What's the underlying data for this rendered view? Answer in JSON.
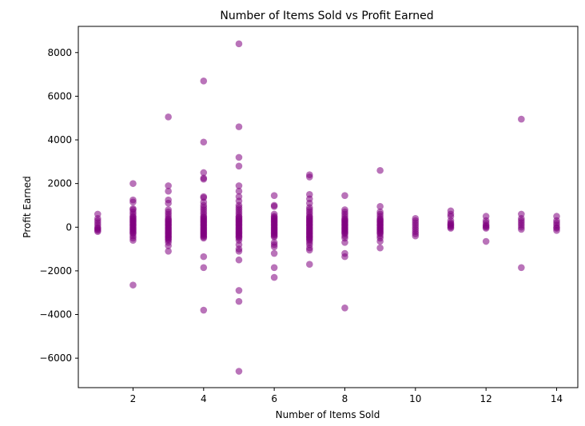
{
  "chart_data": {
    "type": "scatter",
    "title": "Number of Items Sold vs Profit Earned",
    "xlabel": "Number of Items Sold",
    "ylabel": "Profit Earned",
    "xlim": [
      0.45,
      14.6
    ],
    "ylim": [
      -7350,
      9200
    ],
    "xticks": [
      2,
      4,
      6,
      8,
      10,
      12,
      14
    ],
    "yticks": [
      -6000,
      -4000,
      -2000,
      0,
      2000,
      4000,
      6000,
      8000
    ],
    "ytick_labels": [
      "−6000",
      "−4000",
      "−2000",
      "0",
      "2000",
      "4000",
      "6000",
      "8000"
    ],
    "marker_color": "#800080",
    "marker_alpha": 0.55,
    "grid": false,
    "series": [
      {
        "points": [
          [
            1,
            600
          ],
          [
            1,
            400
          ],
          [
            1,
            300
          ],
          [
            1,
            200
          ],
          [
            1,
            100
          ],
          [
            1,
            0
          ],
          [
            1,
            -50
          ],
          [
            1,
            -100
          ],
          [
            1,
            -150
          ],
          [
            1,
            -200
          ],
          [
            2,
            2000
          ],
          [
            2,
            1250
          ],
          [
            2,
            1150
          ],
          [
            2,
            850
          ],
          [
            2,
            800
          ],
          [
            2,
            700
          ],
          [
            2,
            600
          ],
          [
            2,
            500
          ],
          [
            2,
            450
          ],
          [
            2,
            400
          ],
          [
            2,
            350
          ],
          [
            2,
            300
          ],
          [
            2,
            250
          ],
          [
            2,
            200
          ],
          [
            2,
            150
          ],
          [
            2,
            100
          ],
          [
            2,
            50
          ],
          [
            2,
            0
          ],
          [
            2,
            -50
          ],
          [
            2,
            -100
          ],
          [
            2,
            -150
          ],
          [
            2,
            -200
          ],
          [
            2,
            -250
          ],
          [
            2,
            -300
          ],
          [
            2,
            -400
          ],
          [
            2,
            -500
          ],
          [
            2,
            -600
          ],
          [
            2,
            -2650
          ],
          [
            3,
            5050
          ],
          [
            3,
            1900
          ],
          [
            3,
            1650
          ],
          [
            3,
            1250
          ],
          [
            3,
            1100
          ],
          [
            3,
            800
          ],
          [
            3,
            700
          ],
          [
            3,
            600
          ],
          [
            3,
            500
          ],
          [
            3,
            400
          ],
          [
            3,
            350
          ],
          [
            3,
            300
          ],
          [
            3,
            250
          ],
          [
            3,
            200
          ],
          [
            3,
            150
          ],
          [
            3,
            100
          ],
          [
            3,
            50
          ],
          [
            3,
            0
          ],
          [
            3,
            -50
          ],
          [
            3,
            -100
          ],
          [
            3,
            -150
          ],
          [
            3,
            -200
          ],
          [
            3,
            -250
          ],
          [
            3,
            -300
          ],
          [
            3,
            -350
          ],
          [
            3,
            -400
          ],
          [
            3,
            -450
          ],
          [
            3,
            -500
          ],
          [
            3,
            -550
          ],
          [
            3,
            -600
          ],
          [
            3,
            -700
          ],
          [
            3,
            -850
          ],
          [
            3,
            -1100
          ],
          [
            4,
            6700
          ],
          [
            4,
            3900
          ],
          [
            4,
            2500
          ],
          [
            4,
            2250
          ],
          [
            4,
            2200
          ],
          [
            4,
            1400
          ],
          [
            4,
            1350
          ],
          [
            4,
            1150
          ],
          [
            4,
            1000
          ],
          [
            4,
            900
          ],
          [
            4,
            800
          ],
          [
            4,
            700
          ],
          [
            4,
            600
          ],
          [
            4,
            500
          ],
          [
            4,
            450
          ],
          [
            4,
            400
          ],
          [
            4,
            350
          ],
          [
            4,
            300
          ],
          [
            4,
            250
          ],
          [
            4,
            200
          ],
          [
            4,
            150
          ],
          [
            4,
            100
          ],
          [
            4,
            50
          ],
          [
            4,
            0
          ],
          [
            4,
            -50
          ],
          [
            4,
            -100
          ],
          [
            4,
            -150
          ],
          [
            4,
            -200
          ],
          [
            4,
            -250
          ],
          [
            4,
            -300
          ],
          [
            4,
            -350
          ],
          [
            4,
            -400
          ],
          [
            4,
            -450
          ],
          [
            4,
            -500
          ],
          [
            4,
            -1350
          ],
          [
            4,
            -1850
          ],
          [
            4,
            -3800
          ],
          [
            5,
            8400
          ],
          [
            5,
            4600
          ],
          [
            5,
            3200
          ],
          [
            5,
            2800
          ],
          [
            5,
            1900
          ],
          [
            5,
            1650
          ],
          [
            5,
            1400
          ],
          [
            5,
            1200
          ],
          [
            5,
            1000
          ],
          [
            5,
            900
          ],
          [
            5,
            800
          ],
          [
            5,
            700
          ],
          [
            5,
            600
          ],
          [
            5,
            500
          ],
          [
            5,
            450
          ],
          [
            5,
            400
          ],
          [
            5,
            350
          ],
          [
            5,
            300
          ],
          [
            5,
            250
          ],
          [
            5,
            200
          ],
          [
            5,
            150
          ],
          [
            5,
            100
          ],
          [
            5,
            50
          ],
          [
            5,
            0
          ],
          [
            5,
            -50
          ],
          [
            5,
            -100
          ],
          [
            5,
            -150
          ],
          [
            5,
            -200
          ],
          [
            5,
            -250
          ],
          [
            5,
            -300
          ],
          [
            5,
            -350
          ],
          [
            5,
            -400
          ],
          [
            5,
            -450
          ],
          [
            5,
            -500
          ],
          [
            5,
            -600
          ],
          [
            5,
            -800
          ],
          [
            5,
            -1000
          ],
          [
            5,
            -1100
          ],
          [
            5,
            -1500
          ],
          [
            5,
            -2900
          ],
          [
            5,
            -3400
          ],
          [
            5,
            -6600
          ],
          [
            6,
            1450
          ],
          [
            6,
            1000
          ],
          [
            6,
            950
          ],
          [
            6,
            600
          ],
          [
            6,
            500
          ],
          [
            6,
            450
          ],
          [
            6,
            400
          ],
          [
            6,
            350
          ],
          [
            6,
            300
          ],
          [
            6,
            250
          ],
          [
            6,
            200
          ],
          [
            6,
            150
          ],
          [
            6,
            100
          ],
          [
            6,
            50
          ],
          [
            6,
            0
          ],
          [
            6,
            -50
          ],
          [
            6,
            -100
          ],
          [
            6,
            -150
          ],
          [
            6,
            -200
          ],
          [
            6,
            -250
          ],
          [
            6,
            -300
          ],
          [
            6,
            -350
          ],
          [
            6,
            -400
          ],
          [
            6,
            -450
          ],
          [
            6,
            -700
          ],
          [
            6,
            -800
          ],
          [
            6,
            -900
          ],
          [
            6,
            -1200
          ],
          [
            6,
            -1850
          ],
          [
            6,
            -2300
          ],
          [
            7,
            2400
          ],
          [
            7,
            2300
          ],
          [
            7,
            1500
          ],
          [
            7,
            1300
          ],
          [
            7,
            1100
          ],
          [
            7,
            900
          ],
          [
            7,
            800
          ],
          [
            7,
            700
          ],
          [
            7,
            600
          ],
          [
            7,
            500
          ],
          [
            7,
            450
          ],
          [
            7,
            400
          ],
          [
            7,
            350
          ],
          [
            7,
            300
          ],
          [
            7,
            250
          ],
          [
            7,
            200
          ],
          [
            7,
            150
          ],
          [
            7,
            100
          ],
          [
            7,
            50
          ],
          [
            7,
            0
          ],
          [
            7,
            -50
          ],
          [
            7,
            -100
          ],
          [
            7,
            -150
          ],
          [
            7,
            -200
          ],
          [
            7,
            -250
          ],
          [
            7,
            -300
          ],
          [
            7,
            -350
          ],
          [
            7,
            -400
          ],
          [
            7,
            -450
          ],
          [
            7,
            -500
          ],
          [
            7,
            -550
          ],
          [
            7,
            -600
          ],
          [
            7,
            -700
          ],
          [
            7,
            -800
          ],
          [
            7,
            -950
          ],
          [
            7,
            -1050
          ],
          [
            7,
            -1700
          ],
          [
            8,
            1450
          ],
          [
            8,
            800
          ],
          [
            8,
            700
          ],
          [
            8,
            600
          ],
          [
            8,
            500
          ],
          [
            8,
            400
          ],
          [
            8,
            350
          ],
          [
            8,
            300
          ],
          [
            8,
            250
          ],
          [
            8,
            200
          ],
          [
            8,
            150
          ],
          [
            8,
            100
          ],
          [
            8,
            50
          ],
          [
            8,
            0
          ],
          [
            8,
            -50
          ],
          [
            8,
            -100
          ],
          [
            8,
            -150
          ],
          [
            8,
            -200
          ],
          [
            8,
            -250
          ],
          [
            8,
            -300
          ],
          [
            8,
            -400
          ],
          [
            8,
            -500
          ],
          [
            8,
            -700
          ],
          [
            8,
            -1200
          ],
          [
            8,
            -1350
          ],
          [
            8,
            -3700
          ],
          [
            9,
            2600
          ],
          [
            9,
            950
          ],
          [
            9,
            700
          ],
          [
            9,
            600
          ],
          [
            9,
            500
          ],
          [
            9,
            400
          ],
          [
            9,
            350
          ],
          [
            9,
            300
          ],
          [
            9,
            250
          ],
          [
            9,
            200
          ],
          [
            9,
            150
          ],
          [
            9,
            100
          ],
          [
            9,
            50
          ],
          [
            9,
            0
          ],
          [
            9,
            -50
          ],
          [
            9,
            -100
          ],
          [
            9,
            -150
          ],
          [
            9,
            -200
          ],
          [
            9,
            -250
          ],
          [
            9,
            -300
          ],
          [
            9,
            -400
          ],
          [
            9,
            -500
          ],
          [
            9,
            -650
          ],
          [
            9,
            -950
          ],
          [
            10,
            400
          ],
          [
            10,
            300
          ],
          [
            10,
            200
          ],
          [
            10,
            100
          ],
          [
            10,
            0
          ],
          [
            10,
            -100
          ],
          [
            10,
            -200
          ],
          [
            10,
            -300
          ],
          [
            10,
            -400
          ],
          [
            11,
            750
          ],
          [
            11,
            600
          ],
          [
            11,
            500
          ],
          [
            11,
            300
          ],
          [
            11,
            200
          ],
          [
            11,
            150
          ],
          [
            11,
            100
          ],
          [
            11,
            50
          ],
          [
            11,
            0
          ],
          [
            11,
            -50
          ],
          [
            12,
            500
          ],
          [
            12,
            300
          ],
          [
            12,
            200
          ],
          [
            12,
            100
          ],
          [
            12,
            50
          ],
          [
            12,
            0
          ],
          [
            12,
            -50
          ],
          [
            12,
            -650
          ],
          [
            13,
            4950
          ],
          [
            13,
            600
          ],
          [
            13,
            400
          ],
          [
            13,
            300
          ],
          [
            13,
            200
          ],
          [
            13,
            100
          ],
          [
            13,
            0
          ],
          [
            13,
            -100
          ],
          [
            13,
            -1850
          ],
          [
            14,
            500
          ],
          [
            14,
            300
          ],
          [
            14,
            200
          ],
          [
            14,
            100
          ],
          [
            14,
            0
          ],
          [
            14,
            -50
          ],
          [
            14,
            -150
          ]
        ]
      }
    ]
  }
}
